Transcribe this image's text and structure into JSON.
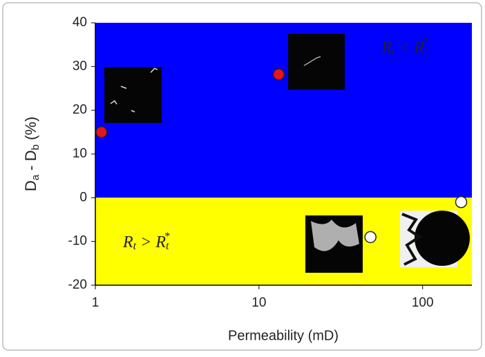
{
  "chart_data": {
    "type": "scatter",
    "x_label": "Permeability (mD)",
    "y_label_parts": [
      "D",
      "a",
      " - D",
      "b",
      " (%)"
    ],
    "annotations": [
      {
        "parts": [
          "R",
          "t",
          " < R",
          "t",
          "*"
        ],
        "color": "#ffffff"
      },
      {
        "parts": [
          "R",
          "t",
          " > R",
          "t",
          "*"
        ],
        "color": "#000000"
      }
    ],
    "x": [
      1.09,
      13.2,
      48,
      172
    ],
    "values": [
      15,
      28.2,
      -9,
      -1
    ],
    "colors": [
      "#e8141c",
      "#e8141c",
      "#ffffff",
      "#ffffff"
    ],
    "xlim": [
      1,
      200
    ],
    "ylim": [
      -20,
      40
    ],
    "xticks": [
      1,
      10,
      100
    ],
    "yticks": [
      -20,
      -10,
      0,
      10,
      20,
      30,
      40
    ],
    "x_log": true,
    "background_colors": [
      "#0000ff",
      "#ffff00"
    ]
  }
}
